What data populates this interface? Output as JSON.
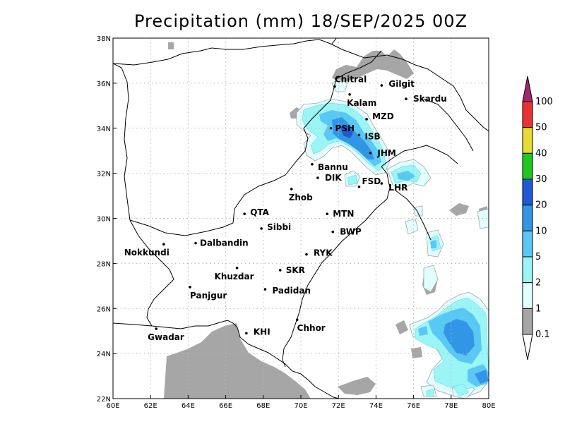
{
  "title": "Precipitation (mm) 18/SEP/2025 00Z",
  "map": {
    "lon_range": [
      60,
      80
    ],
    "lat_range": [
      22,
      38
    ],
    "x_ticks": [
      "60E",
      "62E",
      "64E",
      "66E",
      "68E",
      "70E",
      "72E",
      "74E",
      "76E",
      "78E",
      "80E"
    ],
    "y_ticks": [
      "22N",
      "24N",
      "26N",
      "28N",
      "30N",
      "32N",
      "34N",
      "36N",
      "38N"
    ],
    "grid": "dotted"
  },
  "colorbar": {
    "levels": [
      "0.1",
      "1",
      "2",
      "5",
      "10",
      "20",
      "30",
      "40",
      "50",
      "100"
    ],
    "colors": [
      "#a6a6a6",
      "#e1ffff",
      "#9cf5f5",
      "#5ac8f5",
      "#3296e6",
      "#1e5ad2",
      "#1ec81e",
      "#e6dc32",
      "#eb3232",
      "#a0286e"
    ]
  },
  "cities": [
    {
      "name": "Chitral",
      "lon": 71.8,
      "lat": 35.85
    },
    {
      "name": "Kalam",
      "lon": 72.6,
      "lat": 35.5
    },
    {
      "name": "Gilgit",
      "lon": 74.3,
      "lat": 35.9
    },
    {
      "name": "Skardu",
      "lon": 75.6,
      "lat": 35.3
    },
    {
      "name": "MZD",
      "lon": 73.5,
      "lat": 34.4
    },
    {
      "name": "PSH",
      "lon": 71.6,
      "lat": 34.0
    },
    {
      "name": "ISB",
      "lon": 73.1,
      "lat": 33.7
    },
    {
      "name": "JHM",
      "lon": 73.7,
      "lat": 32.9
    },
    {
      "name": "Bannu",
      "lon": 70.6,
      "lat": 32.4
    },
    {
      "name": "DIK",
      "lon": 70.9,
      "lat": 31.8
    },
    {
      "name": "FSD",
      "lon": 73.1,
      "lat": 31.4
    },
    {
      "name": "LHR",
      "lon": 74.3,
      "lat": 31.55
    },
    {
      "name": "Zhob",
      "lon": 69.5,
      "lat": 31.3
    },
    {
      "name": "QTA",
      "lon": 67.0,
      "lat": 30.2
    },
    {
      "name": "MTN",
      "lon": 71.4,
      "lat": 30.2
    },
    {
      "name": "Sibbi",
      "lon": 67.9,
      "lat": 29.55
    },
    {
      "name": "BWP",
      "lon": 71.7,
      "lat": 29.4
    },
    {
      "name": "Nokkundi",
      "lon": 62.7,
      "lat": 28.85
    },
    {
      "name": "Dalbandin",
      "lon": 64.4,
      "lat": 28.9
    },
    {
      "name": "RYK",
      "lon": 70.3,
      "lat": 28.4
    },
    {
      "name": "Khuzdar",
      "lon": 66.6,
      "lat": 27.8
    },
    {
      "name": "SKR",
      "lon": 68.9,
      "lat": 27.7
    },
    {
      "name": "Panjgur",
      "lon": 64.1,
      "lat": 26.95
    },
    {
      "name": "Padidan",
      "lon": 68.1,
      "lat": 26.85
    },
    {
      "name": "Chhor",
      "lon": 69.8,
      "lat": 25.5
    },
    {
      "name": "KHI",
      "lon": 67.1,
      "lat": 24.9
    },
    {
      "name": "Gwadar",
      "lon": 62.3,
      "lat": 25.1
    }
  ]
}
